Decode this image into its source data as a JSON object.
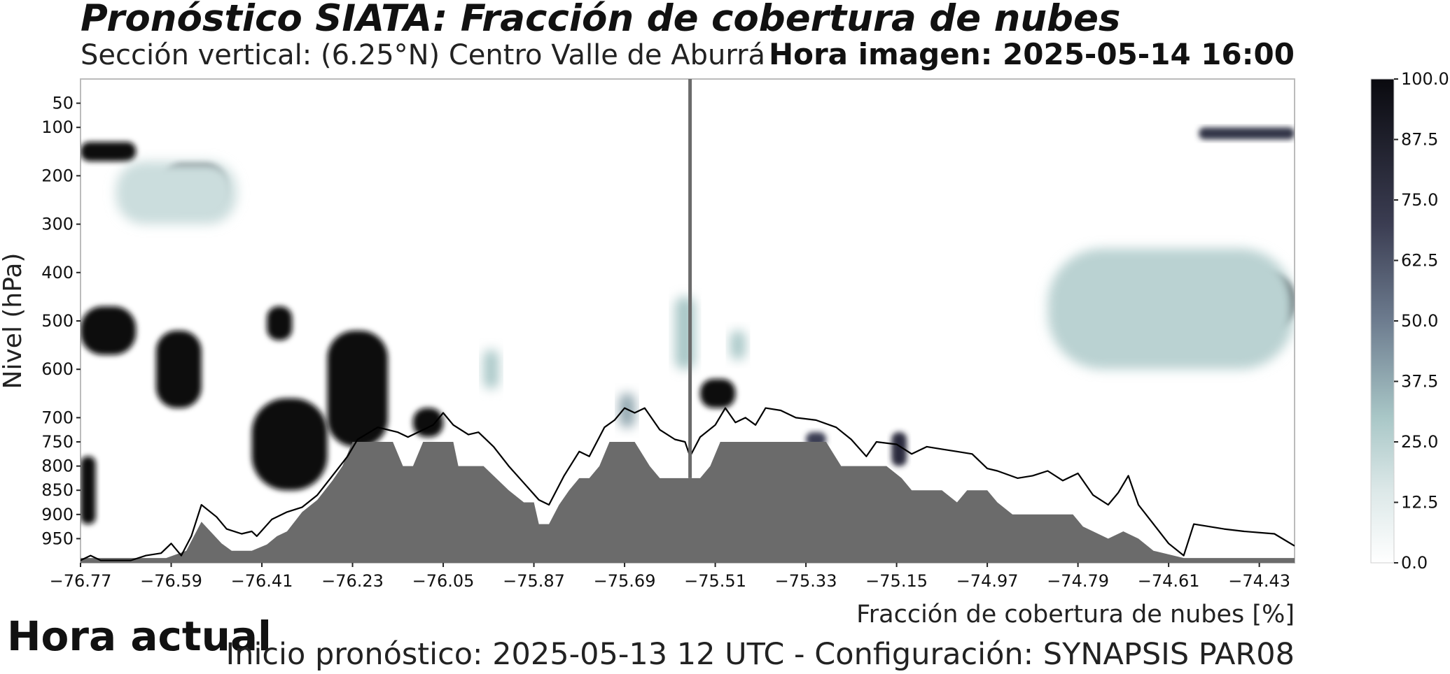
{
  "chart_data": {
    "type": "heatmap",
    "title": "Pronóstico SIATA: Fracción de cobertura de nubes",
    "subtitle": "Sección vertical: (6.25°N) Centro Valle de Aburrá",
    "image_time": "Hora imagen: 2025-05-14 16:00",
    "xlabel": "Fracción de cobertura de nubes [%]",
    "ylabel": "Nivel (hPa)",
    "x_ticks": [
      "−76.77",
      "−76.59",
      "−76.41",
      "−76.23",
      "−76.05",
      "−75.87",
      "−75.69",
      "−75.51",
      "−75.33",
      "−75.15",
      "−74.97",
      "−74.79",
      "−74.61",
      "−74.43"
    ],
    "x_tick_values": [
      -76.77,
      -76.59,
      -76.41,
      -76.23,
      -76.05,
      -75.87,
      -75.69,
      -75.51,
      -75.33,
      -75.15,
      -74.97,
      -74.79,
      -74.61,
      -74.43
    ],
    "xlim": [
      -76.77,
      -74.36
    ],
    "y_ticks": [
      "50",
      "100",
      "200",
      "300",
      "400",
      "500",
      "600",
      "700",
      "750",
      "800",
      "850",
      "900",
      "950"
    ],
    "y_tick_values": [
      50,
      100,
      200,
      300,
      400,
      500,
      600,
      700,
      750,
      800,
      850,
      900,
      950
    ],
    "ylim": [
      1000,
      0
    ],
    "colorbar": {
      "ticks": [
        "0.0",
        "12.5",
        "25.0",
        "37.5",
        "50.0",
        "62.5",
        "75.0",
        "87.5",
        "100.0"
      ],
      "tick_values": [
        0,
        12.5,
        25,
        37.5,
        50,
        62.5,
        75,
        87.5,
        100
      ],
      "range": [
        0,
        100
      ],
      "color_low": "#ffffff",
      "color_mid_low": "#a9c7c7",
      "color_mid": "#6d7c8f",
      "color_high": "#0a0a0f"
    },
    "current_time_line_x": -75.56,
    "terrain_color": "#6b6b6b",
    "terrain": [
      {
        "x": -76.77,
        "y": 990
      },
      {
        "x": -76.6,
        "y": 990
      },
      {
        "x": -76.56,
        "y": 975
      },
      {
        "x": -76.53,
        "y": 915
      },
      {
        "x": -76.49,
        "y": 960
      },
      {
        "x": -76.47,
        "y": 975
      },
      {
        "x": -76.43,
        "y": 975
      },
      {
        "x": -76.4,
        "y": 962
      },
      {
        "x": -76.38,
        "y": 945
      },
      {
        "x": -76.36,
        "y": 935
      },
      {
        "x": -76.33,
        "y": 895
      },
      {
        "x": -76.3,
        "y": 870
      },
      {
        "x": -76.27,
        "y": 830
      },
      {
        "x": -76.25,
        "y": 800
      },
      {
        "x": -76.23,
        "y": 750
      },
      {
        "x": -76.15,
        "y": 750
      },
      {
        "x": -76.13,
        "y": 800
      },
      {
        "x": -76.11,
        "y": 800
      },
      {
        "x": -76.09,
        "y": 750
      },
      {
        "x": -76.03,
        "y": 750
      },
      {
        "x": -76.02,
        "y": 800
      },
      {
        "x": -75.97,
        "y": 800
      },
      {
        "x": -75.92,
        "y": 850
      },
      {
        "x": -75.89,
        "y": 875
      },
      {
        "x": -75.87,
        "y": 875
      },
      {
        "x": -75.86,
        "y": 920
      },
      {
        "x": -75.84,
        "y": 920
      },
      {
        "x": -75.82,
        "y": 880
      },
      {
        "x": -75.8,
        "y": 850
      },
      {
        "x": -75.78,
        "y": 825
      },
      {
        "x": -75.76,
        "y": 825
      },
      {
        "x": -75.74,
        "y": 800
      },
      {
        "x": -75.72,
        "y": 750
      },
      {
        "x": -75.67,
        "y": 750
      },
      {
        "x": -75.64,
        "y": 800
      },
      {
        "x": -75.62,
        "y": 825
      },
      {
        "x": -75.57,
        "y": 825
      },
      {
        "x": -75.54,
        "y": 825
      },
      {
        "x": -75.52,
        "y": 800
      },
      {
        "x": -75.5,
        "y": 750
      },
      {
        "x": -75.33,
        "y": 750
      },
      {
        "x": -75.29,
        "y": 750
      },
      {
        "x": -75.26,
        "y": 800
      },
      {
        "x": -75.17,
        "y": 800
      },
      {
        "x": -75.14,
        "y": 825
      },
      {
        "x": -75.12,
        "y": 850
      },
      {
        "x": -75.06,
        "y": 850
      },
      {
        "x": -75.03,
        "y": 875
      },
      {
        "x": -75.01,
        "y": 850
      },
      {
        "x": -74.97,
        "y": 850
      },
      {
        "x": -74.95,
        "y": 875
      },
      {
        "x": -74.92,
        "y": 900
      },
      {
        "x": -74.8,
        "y": 900
      },
      {
        "x": -74.78,
        "y": 925
      },
      {
        "x": -74.76,
        "y": 935
      },
      {
        "x": -74.73,
        "y": 950
      },
      {
        "x": -74.7,
        "y": 935
      },
      {
        "x": -74.67,
        "y": 950
      },
      {
        "x": -74.64,
        "y": 975
      },
      {
        "x": -74.58,
        "y": 990
      },
      {
        "x": -74.36,
        "y": 990
      }
    ],
    "contour_line": [
      {
        "x": -76.77,
        "y": 995
      },
      {
        "x": -76.75,
        "y": 985
      },
      {
        "x": -76.73,
        "y": 995
      },
      {
        "x": -76.67,
        "y": 995
      },
      {
        "x": -76.64,
        "y": 985
      },
      {
        "x": -76.61,
        "y": 980
      },
      {
        "x": -76.59,
        "y": 960
      },
      {
        "x": -76.57,
        "y": 985
      },
      {
        "x": -76.55,
        "y": 945
      },
      {
        "x": -76.53,
        "y": 880
      },
      {
        "x": -76.5,
        "y": 905
      },
      {
        "x": -76.48,
        "y": 930
      },
      {
        "x": -76.45,
        "y": 940
      },
      {
        "x": -76.43,
        "y": 935
      },
      {
        "x": -76.42,
        "y": 945
      },
      {
        "x": -76.39,
        "y": 910
      },
      {
        "x": -76.36,
        "y": 895
      },
      {
        "x": -76.33,
        "y": 885
      },
      {
        "x": -76.3,
        "y": 860
      },
      {
        "x": -76.27,
        "y": 820
      },
      {
        "x": -76.24,
        "y": 780
      },
      {
        "x": -76.22,
        "y": 745
      },
      {
        "x": -76.18,
        "y": 720
      },
      {
        "x": -76.14,
        "y": 730
      },
      {
        "x": -76.12,
        "y": 740
      },
      {
        "x": -76.09,
        "y": 725
      },
      {
        "x": -76.07,
        "y": 715
      },
      {
        "x": -76.05,
        "y": 690
      },
      {
        "x": -76.03,
        "y": 715
      },
      {
        "x": -76.0,
        "y": 735
      },
      {
        "x": -75.98,
        "y": 730
      },
      {
        "x": -75.95,
        "y": 760
      },
      {
        "x": -75.92,
        "y": 800
      },
      {
        "x": -75.89,
        "y": 835
      },
      {
        "x": -75.86,
        "y": 870
      },
      {
        "x": -75.84,
        "y": 880
      },
      {
        "x": -75.81,
        "y": 820
      },
      {
        "x": -75.78,
        "y": 770
      },
      {
        "x": -75.76,
        "y": 780
      },
      {
        "x": -75.73,
        "y": 720
      },
      {
        "x": -75.71,
        "y": 705
      },
      {
        "x": -75.69,
        "y": 680
      },
      {
        "x": -75.67,
        "y": 690
      },
      {
        "x": -75.65,
        "y": 680
      },
      {
        "x": -75.62,
        "y": 725
      },
      {
        "x": -75.59,
        "y": 745
      },
      {
        "x": -75.57,
        "y": 750
      },
      {
        "x": -75.56,
        "y": 780
      },
      {
        "x": -75.54,
        "y": 740
      },
      {
        "x": -75.51,
        "y": 715
      },
      {
        "x": -75.49,
        "y": 680
      },
      {
        "x": -75.47,
        "y": 710
      },
      {
        "x": -75.45,
        "y": 700
      },
      {
        "x": -75.43,
        "y": 715
      },
      {
        "x": -75.41,
        "y": 680
      },
      {
        "x": -75.38,
        "y": 685
      },
      {
        "x": -75.35,
        "y": 700
      },
      {
        "x": -75.31,
        "y": 705
      },
      {
        "x": -75.27,
        "y": 720
      },
      {
        "x": -75.24,
        "y": 745
      },
      {
        "x": -75.21,
        "y": 780
      },
      {
        "x": -75.19,
        "y": 750
      },
      {
        "x": -75.15,
        "y": 755
      },
      {
        "x": -75.12,
        "y": 775
      },
      {
        "x": -75.09,
        "y": 760
      },
      {
        "x": -75.06,
        "y": 765
      },
      {
        "x": -75.03,
        "y": 770
      },
      {
        "x": -75.0,
        "y": 775
      },
      {
        "x": -74.97,
        "y": 805
      },
      {
        "x": -74.95,
        "y": 810
      },
      {
        "x": -74.91,
        "y": 825
      },
      {
        "x": -74.88,
        "y": 820
      },
      {
        "x": -74.85,
        "y": 810
      },
      {
        "x": -74.82,
        "y": 830
      },
      {
        "x": -74.79,
        "y": 815
      },
      {
        "x": -74.76,
        "y": 860
      },
      {
        "x": -74.73,
        "y": 880
      },
      {
        "x": -74.71,
        "y": 855
      },
      {
        "x": -74.69,
        "y": 820
      },
      {
        "x": -74.67,
        "y": 880
      },
      {
        "x": -74.64,
        "y": 920
      },
      {
        "x": -74.61,
        "y": 960
      },
      {
        "x": -74.58,
        "y": 985
      },
      {
        "x": -74.56,
        "y": 920
      },
      {
        "x": -74.53,
        "y": 925
      },
      {
        "x": -74.5,
        "y": 930
      },
      {
        "x": -74.46,
        "y": 935
      },
      {
        "x": -74.4,
        "y": 940
      },
      {
        "x": -74.36,
        "y": 965
      }
    ],
    "cloud_blobs": [
      {
        "x0": -76.77,
        "x1": -76.66,
        "y0": 130,
        "y1": 170,
        "value": 100
      },
      {
        "x0": -76.61,
        "x1": -76.48,
        "y0": 175,
        "y1": 270,
        "value": 90
      },
      {
        "x0": -76.7,
        "x1": -76.46,
        "y0": 170,
        "y1": 300,
        "value": 20
      },
      {
        "x0": -76.77,
        "x1": -76.66,
        "y0": 470,
        "y1": 570,
        "value": 100
      },
      {
        "x0": -76.62,
        "x1": -76.53,
        "y0": 520,
        "y1": 680,
        "value": 100
      },
      {
        "x0": -76.4,
        "x1": -76.35,
        "y0": 470,
        "y1": 540,
        "value": 100
      },
      {
        "x0": -76.28,
        "x1": -76.16,
        "y0": 520,
        "y1": 760,
        "value": 100
      },
      {
        "x0": -76.43,
        "x1": -76.28,
        "y0": 660,
        "y1": 850,
        "value": 100
      },
      {
        "x0": -76.11,
        "x1": -76.05,
        "y0": 680,
        "y1": 740,
        "value": 100
      },
      {
        "x0": -76.77,
        "x1": -76.74,
        "y0": 780,
        "y1": 920,
        "value": 100
      },
      {
        "x0": -75.54,
        "x1": -75.47,
        "y0": 620,
        "y1": 680,
        "value": 100
      },
      {
        "x0": -74.8,
        "x1": -74.36,
        "y0": 400,
        "y1": 520,
        "value": 95
      },
      {
        "x0": -74.85,
        "x1": -74.36,
        "y0": 350,
        "y1": 600,
        "value": 25
      },
      {
        "x0": -74.55,
        "x1": -74.36,
        "y0": 100,
        "y1": 125,
        "value": 75
      },
      {
        "x0": -75.16,
        "x1": -75.13,
        "y0": 730,
        "y1": 800,
        "value": 80
      },
      {
        "x0": -75.33,
        "x1": -75.29,
        "y0": 730,
        "y1": 760,
        "value": 70
      },
      {
        "x0": -75.59,
        "x1": -75.55,
        "y0": 450,
        "y1": 600,
        "value": 30
      },
      {
        "x0": -75.48,
        "x1": -75.45,
        "y0": 520,
        "y1": 580,
        "value": 30
      },
      {
        "x0": -75.97,
        "x1": -75.94,
        "y0": 560,
        "y1": 640,
        "value": 30
      },
      {
        "x0": -75.7,
        "x1": -75.67,
        "y0": 650,
        "y1": 720,
        "value": 40
      }
    ]
  },
  "labels": {
    "now_label": "Hora actual",
    "footer": "Inicio pronóstico: 2025-05-13 12 UTC - Configuración: SYNAPSIS PAR08"
  }
}
